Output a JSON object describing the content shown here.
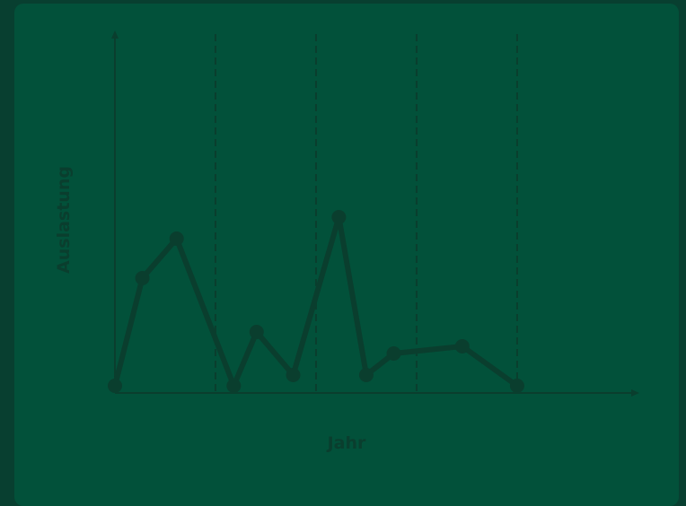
{
  "colors": {
    "page_background": "#083f30",
    "panel_background": "#02513a",
    "line": "#0a3e2e",
    "axis": "#0a3e2e",
    "gridline": "#0a3e2e",
    "axis_title": "#0a3e2e"
  },
  "chart_data": {
    "type": "line",
    "title": "",
    "xlabel": "Jahr",
    "ylabel": "Auslastung",
    "x_ticks_shown": false,
    "y_ticks_shown": false,
    "grid": "vertical-dashed",
    "xlim": [
      0,
      1
    ],
    "ylim": [
      0,
      1
    ],
    "x_gridlines": [
      0.22,
      0.44,
      0.66,
      0.88
    ],
    "x": [
      0.0,
      0.06,
      0.135,
      0.26,
      0.31,
      0.39,
      0.49,
      0.55,
      0.61,
      0.76,
      0.88
    ],
    "y": [
      0.02,
      0.32,
      0.43,
      0.02,
      0.17,
      0.05,
      0.49,
      0.05,
      0.11,
      0.13,
      0.02
    ]
  }
}
